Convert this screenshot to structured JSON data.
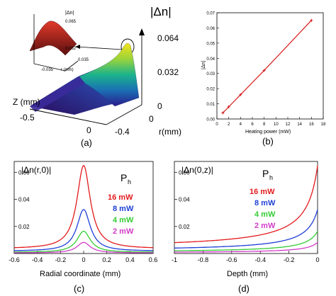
{
  "figure": {
    "panels": [
      {
        "id": "a",
        "label": "(a)"
      },
      {
        "id": "b",
        "label": "(b)"
      },
      {
        "id": "c",
        "label": "(c)"
      },
      {
        "id": "d",
        "label": "(d)"
      }
    ]
  },
  "colors": {
    "line_red": "#d81b1b",
    "series_16": "#e31a1c",
    "series_8": "#1f3fd6",
    "series_4": "#33cc33",
    "series_2": "#d23cc8",
    "axis": "#000000"
  },
  "chart_data": [
    {
      "id": "a",
      "type": "surface",
      "zlabel": "|Δn|",
      "z_ticks": [
        "0.064",
        "0.032",
        "0"
      ],
      "y_label": "Z (mm)",
      "y_ticks": [
        "-0.5",
        "0"
      ],
      "x_label": "r(mm)",
      "x_ticks": [
        "-0.4",
        "0"
      ],
      "inset": {
        "zlabel": "|Δn|",
        "z_ticks": [
          "0.065",
          "0.062"
        ],
        "x_ticks": [
          "-0.035",
          "0.035"
        ],
        "x_label": "r (mm)"
      }
    },
    {
      "id": "b",
      "type": "line",
      "xlabel": "Heating power (mW)",
      "ylabel": "|Δn|",
      "xlim": [
        0,
        18
      ],
      "ylim": [
        0,
        0.07
      ],
      "x_ticks": [
        0,
        2,
        4,
        6,
        8,
        10,
        12,
        14,
        16,
        18
      ],
      "y_ticks": [
        "0.00",
        "0.01",
        "0.02",
        "0.03",
        "0.04",
        "0.05",
        "0.06",
        "0.07"
      ],
      "series": [
        {
          "x": [
            1,
            2,
            4,
            8,
            16
          ],
          "y": [
            0.004,
            0.008,
            0.016,
            0.032,
            0.065
          ]
        }
      ]
    },
    {
      "id": "c",
      "type": "line",
      "xlabel": "Radial coordinate (mm)",
      "ylabel": "|Δn(r,0)|",
      "xlim": [
        -0.6,
        0.6
      ],
      "ylim": [
        0,
        0.068
      ],
      "x_ticks": [
        "-0.6",
        "-0.4",
        "-0.2",
        "0",
        "0.2",
        "0.4",
        "0.6"
      ],
      "y_ticks": [
        "0.02",
        "0.04",
        "0.06"
      ],
      "legend_title": "P",
      "legend_title_sub": "h",
      "legend_position": "right",
      "series": [
        {
          "name": "16 mW",
          "color": "#e31a1c",
          "peak": 0.065
        },
        {
          "name": "8 mW",
          "color": "#1f3fd6",
          "peak": 0.0325
        },
        {
          "name": "4 mW",
          "color": "#33cc33",
          "peak": 0.0165
        },
        {
          "name": "2 mW",
          "color": "#d23cc8",
          "peak": 0.0082
        }
      ]
    },
    {
      "id": "d",
      "type": "line",
      "xlabel": "Depth (mm)",
      "ylabel": "|Δn(0,z)|",
      "xlim": [
        -1,
        0
      ],
      "ylim": [
        0,
        0.068
      ],
      "x_ticks": [
        "-1",
        "-0.8",
        "-0.6",
        "-0.4",
        "-0.2",
        "0"
      ],
      "y_ticks": [
        "0.02",
        "0.04",
        "0.06"
      ],
      "legend_title": "P",
      "legend_title_sub": "h",
      "legend_position": "right",
      "series": [
        {
          "name": "16 mW",
          "color": "#e31a1c",
          "end": 0.065
        },
        {
          "name": "8 mW",
          "color": "#1f3fd6",
          "end": 0.0325
        },
        {
          "name": "4 mW",
          "color": "#33cc33",
          "end": 0.0165
        },
        {
          "name": "2 mW",
          "color": "#d23cc8",
          "end": 0.0082
        }
      ]
    }
  ]
}
